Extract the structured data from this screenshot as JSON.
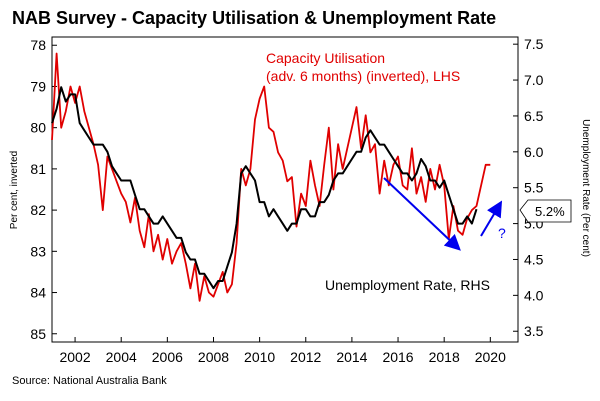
{
  "chart_data": {
    "type": "line",
    "title": "NAB Survey - Capacity Utilisation & Unemployment Rate",
    "source": "Source: National Australia Bank",
    "ylabel_left": "Per cent, inverted",
    "ylabel_right": "Unemployment Rate (Per cent)",
    "left_axis": {
      "ticks": [
        "78",
        "79",
        "80",
        "81",
        "82",
        "83",
        "84",
        "85"
      ],
      "ylim": [
        85.2,
        77.8
      ],
      "inverted": true
    },
    "right_axis": {
      "ticks": [
        "3.5",
        "4.0",
        "4.5",
        "5.0",
        "5.5",
        "6.0",
        "6.5",
        "7.0",
        "7.5"
      ],
      "ylim": [
        3.35,
        7.6
      ]
    },
    "x_ticks": [
      "2002",
      "2004",
      "2006",
      "2008",
      "2010",
      "2012",
      "2014",
      "2016",
      "2018",
      "2020"
    ],
    "xlim": [
      2001.0,
      2021.2
    ],
    "annotations": {
      "capacity_label_line1": "Capacity Utilisation",
      "capacity_label_line2": "(adv. 6 months) (inverted), LHS",
      "unemployment_label": "Unemployment Rate, RHS",
      "question_mark": "?",
      "latest_value": "5.2%"
    },
    "colors": {
      "capacity": "#e00000",
      "unemployment": "#000000",
      "arrows": "#0000ee"
    },
    "series": [
      {
        "name": "Capacity Utilisation (adv. 6 months) (inverted), LHS",
        "axis": "left",
        "x": [
          2001.0,
          2001.2,
          2001.4,
          2001.6,
          2001.8,
          2002.0,
          2002.2,
          2002.4,
          2002.6,
          2002.8,
          2003.0,
          2003.2,
          2003.4,
          2003.6,
          2003.8,
          2004.0,
          2004.2,
          2004.4,
          2004.6,
          2004.8,
          2005.0,
          2005.2,
          2005.4,
          2005.6,
          2005.8,
          2006.0,
          2006.2,
          2006.4,
          2006.6,
          2006.8,
          2007.0,
          2007.2,
          2007.4,
          2007.6,
          2007.8,
          2008.0,
          2008.2,
          2008.4,
          2008.6,
          2008.8,
          2009.0,
          2009.2,
          2009.4,
          2009.6,
          2009.8,
          2010.0,
          2010.2,
          2010.4,
          2010.6,
          2010.8,
          2011.0,
          2011.2,
          2011.4,
          2011.6,
          2011.8,
          2012.0,
          2012.2,
          2012.4,
          2012.6,
          2012.8,
          2013.0,
          2013.2,
          2013.4,
          2013.6,
          2013.8,
          2014.0,
          2014.2,
          2014.4,
          2014.6,
          2014.8,
          2015.0,
          2015.2,
          2015.4,
          2015.6,
          2015.8,
          2016.0,
          2016.2,
          2016.4,
          2016.6,
          2016.8,
          2017.0,
          2017.2,
          2017.4,
          2017.6,
          2017.8,
          2018.0,
          2018.2,
          2018.4,
          2018.6,
          2018.8,
          2019.0,
          2019.2,
          2019.4,
          2019.6,
          2019.8,
          2020.0
        ],
        "y": [
          80.3,
          78.2,
          80.0,
          79.6,
          79.0,
          79.4,
          79.0,
          79.6,
          80.0,
          80.4,
          80.9,
          82.0,
          80.7,
          81.0,
          81.3,
          81.6,
          81.8,
          82.3,
          81.7,
          82.5,
          82.9,
          82.1,
          83.0,
          82.6,
          83.2,
          82.7,
          83.3,
          83.0,
          82.8,
          83.3,
          83.9,
          83.3,
          84.2,
          83.6,
          84.0,
          84.1,
          83.8,
          83.5,
          84.0,
          83.8,
          82.8,
          81.0,
          81.4,
          81.0,
          79.8,
          79.3,
          79.0,
          80.0,
          80.1,
          80.6,
          80.8,
          81.3,
          81.2,
          82.4,
          81.6,
          81.9,
          80.8,
          81.4,
          81.9,
          80.9,
          80.0,
          81.5,
          80.4,
          81.0,
          80.5,
          80.0,
          79.5,
          80.5,
          79.7,
          80.6,
          80.4,
          81.6,
          80.8,
          81.4,
          80.9,
          80.7,
          81.4,
          81.5,
          80.5,
          81.6,
          81.2,
          81.8,
          81.0,
          81.5,
          80.9,
          81.4,
          82.7,
          81.9,
          82.5,
          82.6,
          82.2,
          82.0,
          81.9,
          81.4,
          80.9,
          80.9
        ]
      },
      {
        "name": "Unemployment Rate, RHS",
        "axis": "right",
        "x": [
          2001.0,
          2001.2,
          2001.4,
          2001.6,
          2001.8,
          2002.0,
          2002.2,
          2002.4,
          2002.6,
          2002.8,
          2003.0,
          2003.2,
          2003.4,
          2003.6,
          2003.8,
          2004.0,
          2004.2,
          2004.4,
          2004.6,
          2004.8,
          2005.0,
          2005.2,
          2005.4,
          2005.6,
          2005.8,
          2006.0,
          2006.2,
          2006.4,
          2006.6,
          2006.8,
          2007.0,
          2007.2,
          2007.4,
          2007.6,
          2007.8,
          2008.0,
          2008.2,
          2008.4,
          2008.6,
          2008.8,
          2009.0,
          2009.2,
          2009.4,
          2009.6,
          2009.8,
          2010.0,
          2010.2,
          2010.4,
          2010.6,
          2010.8,
          2011.0,
          2011.2,
          2011.4,
          2011.6,
          2011.8,
          2012.0,
          2012.2,
          2012.4,
          2012.6,
          2012.8,
          2013.0,
          2013.2,
          2013.4,
          2013.6,
          2013.8,
          2014.0,
          2014.2,
          2014.4,
          2014.6,
          2014.8,
          2015.0,
          2015.2,
          2015.4,
          2015.6,
          2015.8,
          2016.0,
          2016.2,
          2016.4,
          2016.6,
          2016.8,
          2017.0,
          2017.2,
          2017.4,
          2017.6,
          2017.8,
          2018.0,
          2018.2,
          2018.4,
          2018.6,
          2018.8,
          2019.0,
          2019.2,
          2019.4
        ],
        "y": [
          6.4,
          6.6,
          6.9,
          6.7,
          6.8,
          6.8,
          6.4,
          6.3,
          6.2,
          6.1,
          6.1,
          6.1,
          6.0,
          5.8,
          5.7,
          5.6,
          5.6,
          5.6,
          5.4,
          5.2,
          5.2,
          5.1,
          5.0,
          5.0,
          5.1,
          5.0,
          4.9,
          4.8,
          4.8,
          4.6,
          4.5,
          4.5,
          4.3,
          4.3,
          4.2,
          4.1,
          4.2,
          4.2,
          4.4,
          4.6,
          5.0,
          5.7,
          5.8,
          5.7,
          5.6,
          5.3,
          5.3,
          5.1,
          5.2,
          5.1,
          5.0,
          4.9,
          5.0,
          5.0,
          5.2,
          5.2,
          5.1,
          5.1,
          5.3,
          5.3,
          5.4,
          5.6,
          5.7,
          5.7,
          5.8,
          5.9,
          6.0,
          6.0,
          6.2,
          6.3,
          6.2,
          6.1,
          6.1,
          6.0,
          5.9,
          5.8,
          5.7,
          5.7,
          5.6,
          5.7,
          5.9,
          5.8,
          5.6,
          5.6,
          5.5,
          5.6,
          5.4,
          5.2,
          5.0,
          5.0,
          5.1,
          5.0,
          5.2
        ]
      }
    ]
  }
}
